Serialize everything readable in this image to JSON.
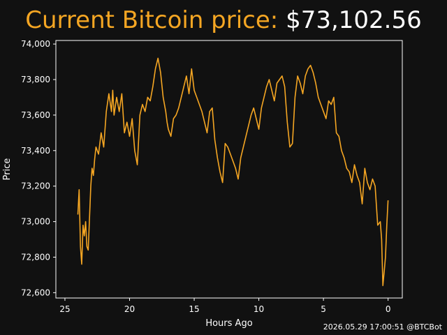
{
  "header": {
    "label": "Current Bitcoin price:",
    "price": "$73,102.56"
  },
  "footer": {
    "timestamp": "2026.05.29 17:00:51 @BTCBot"
  },
  "colors": {
    "background": "#111111",
    "line": "#f5a623",
    "title_label": "#f5a623"
  },
  "chart_data": {
    "type": "line",
    "title": "",
    "xlabel": "Hours Ago",
    "ylabel": "Price",
    "xlim": [
      25.7,
      -1.1
    ],
    "ylim": [
      72570,
      74020
    ],
    "xticks": [
      25,
      20,
      15,
      10,
      5,
      0
    ],
    "xtick_labels": [
      "25",
      "20",
      "15",
      "10",
      "5",
      "0"
    ],
    "yticks": [
      72600,
      72800,
      73000,
      73200,
      73400,
      73600,
      73800,
      74000
    ],
    "ytick_labels": [
      "72,600",
      "72,800",
      "73,000",
      "73,200",
      "73,400",
      "73,600",
      "73,800",
      "74,000"
    ],
    "grid": false,
    "legend": "none",
    "series": [
      {
        "x": [
          24.0,
          23.9,
          23.8,
          23.7,
          23.6,
          23.5,
          23.4,
          23.3,
          23.2,
          23.0,
          22.9,
          22.8,
          22.7,
          22.6,
          22.4,
          22.2,
          22.0,
          21.8,
          21.6,
          21.4,
          21.3,
          21.2,
          21.0,
          20.8,
          20.6,
          20.4,
          20.2,
          20.0,
          19.8,
          19.6,
          19.4,
          19.2,
          19.0,
          18.8,
          18.6,
          18.4,
          18.2,
          18.0,
          17.8,
          17.6,
          17.4,
          17.2,
          17.1,
          17.0,
          16.8,
          16.6,
          16.4,
          16.2,
          16.0,
          15.8,
          15.6,
          15.4,
          15.2,
          15.0,
          14.8,
          14.6,
          14.4,
          14.2,
          14.0,
          13.8,
          13.6,
          13.4,
          13.2,
          13.0,
          12.8,
          12.6,
          12.4,
          12.2,
          12.0,
          11.8,
          11.6,
          11.4,
          11.2,
          11.0,
          10.8,
          10.6,
          10.4,
          10.2,
          10.0,
          9.8,
          9.6,
          9.4,
          9.2,
          9.0,
          8.8,
          8.6,
          8.4,
          8.2,
          8.0,
          7.8,
          7.6,
          7.4,
          7.2,
          7.0,
          6.8,
          6.6,
          6.4,
          6.2,
          6.0,
          5.8,
          5.6,
          5.4,
          5.2,
          5.0,
          4.8,
          4.6,
          4.4,
          4.2,
          4.0,
          3.8,
          3.6,
          3.4,
          3.2,
          3.0,
          2.8,
          2.6,
          2.4,
          2.2,
          2.0,
          1.8,
          1.6,
          1.4,
          1.2,
          1.0,
          0.8,
          0.6,
          0.5,
          0.4,
          0.3,
          0.2,
          0.1,
          0.0
        ],
        "values": [
          73040,
          73180,
          72860,
          72760,
          72980,
          72920,
          73000,
          72860,
          72840,
          73200,
          73300,
          73260,
          73350,
          73420,
          73380,
          73500,
          73420,
          73620,
          73720,
          73620,
          73740,
          73600,
          73700,
          73620,
          73720,
          73500,
          73560,
          73480,
          73580,
          73400,
          73320,
          73600,
          73660,
          73620,
          73700,
          73680,
          73760,
          73860,
          73920,
          73840,
          73700,
          73620,
          73560,
          73520,
          73480,
          73580,
          73600,
          73640,
          73700,
          73760,
          73820,
          73720,
          73860,
          73740,
          73700,
          73660,
          73620,
          73560,
          73500,
          73620,
          73640,
          73460,
          73360,
          73280,
          73220,
          73440,
          73420,
          73380,
          73340,
          73300,
          73240,
          73360,
          73420,
          73480,
          73540,
          73600,
          73640,
          73580,
          73520,
          73640,
          73700,
          73760,
          73800,
          73740,
          73680,
          73780,
          73800,
          73820,
          73760,
          73560,
          73420,
          73440,
          73700,
          73820,
          73780,
          73720,
          73820,
          73860,
          73880,
          73840,
          73780,
          73700,
          73660,
          73620,
          73580,
          73680,
          73660,
          73700,
          73500,
          73480,
          73400,
          73360,
          73300,
          73280,
          73220,
          73320,
          73260,
          73220,
          73100,
          73300,
          73220,
          73180,
          73240,
          73200,
          72980,
          73000,
          72900,
          72640,
          72720,
          72800,
          72980,
          73120
        ]
      }
    ]
  }
}
